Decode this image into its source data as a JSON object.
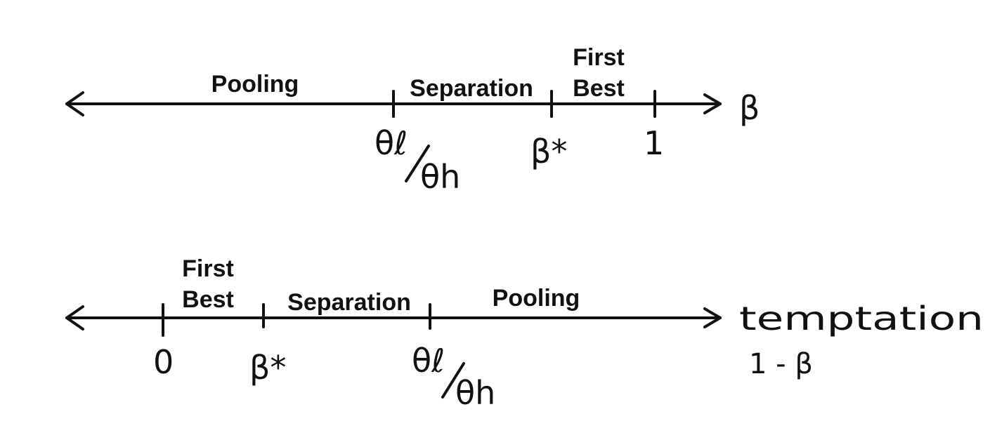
{
  "top_line": {
    "regions": {
      "pooling": "Pooling",
      "separation": "Separation",
      "first_best_1": "First",
      "first_best_2": "Best"
    },
    "ticks": {
      "theta_l": "θℓ",
      "theta_h": "θh",
      "beta_star": "β*",
      "one": "1"
    },
    "axis_label": "β"
  },
  "bottom_line": {
    "regions": {
      "first_best_1": "First",
      "first_best_2": "Best",
      "separation": "Separation",
      "pooling": "Pooling"
    },
    "ticks": {
      "zero": "0",
      "beta_star": "β*",
      "theta_l": "θℓ",
      "theta_h": "θh"
    },
    "axis_label": "temptation",
    "axis_sublabel": "1 - β"
  }
}
